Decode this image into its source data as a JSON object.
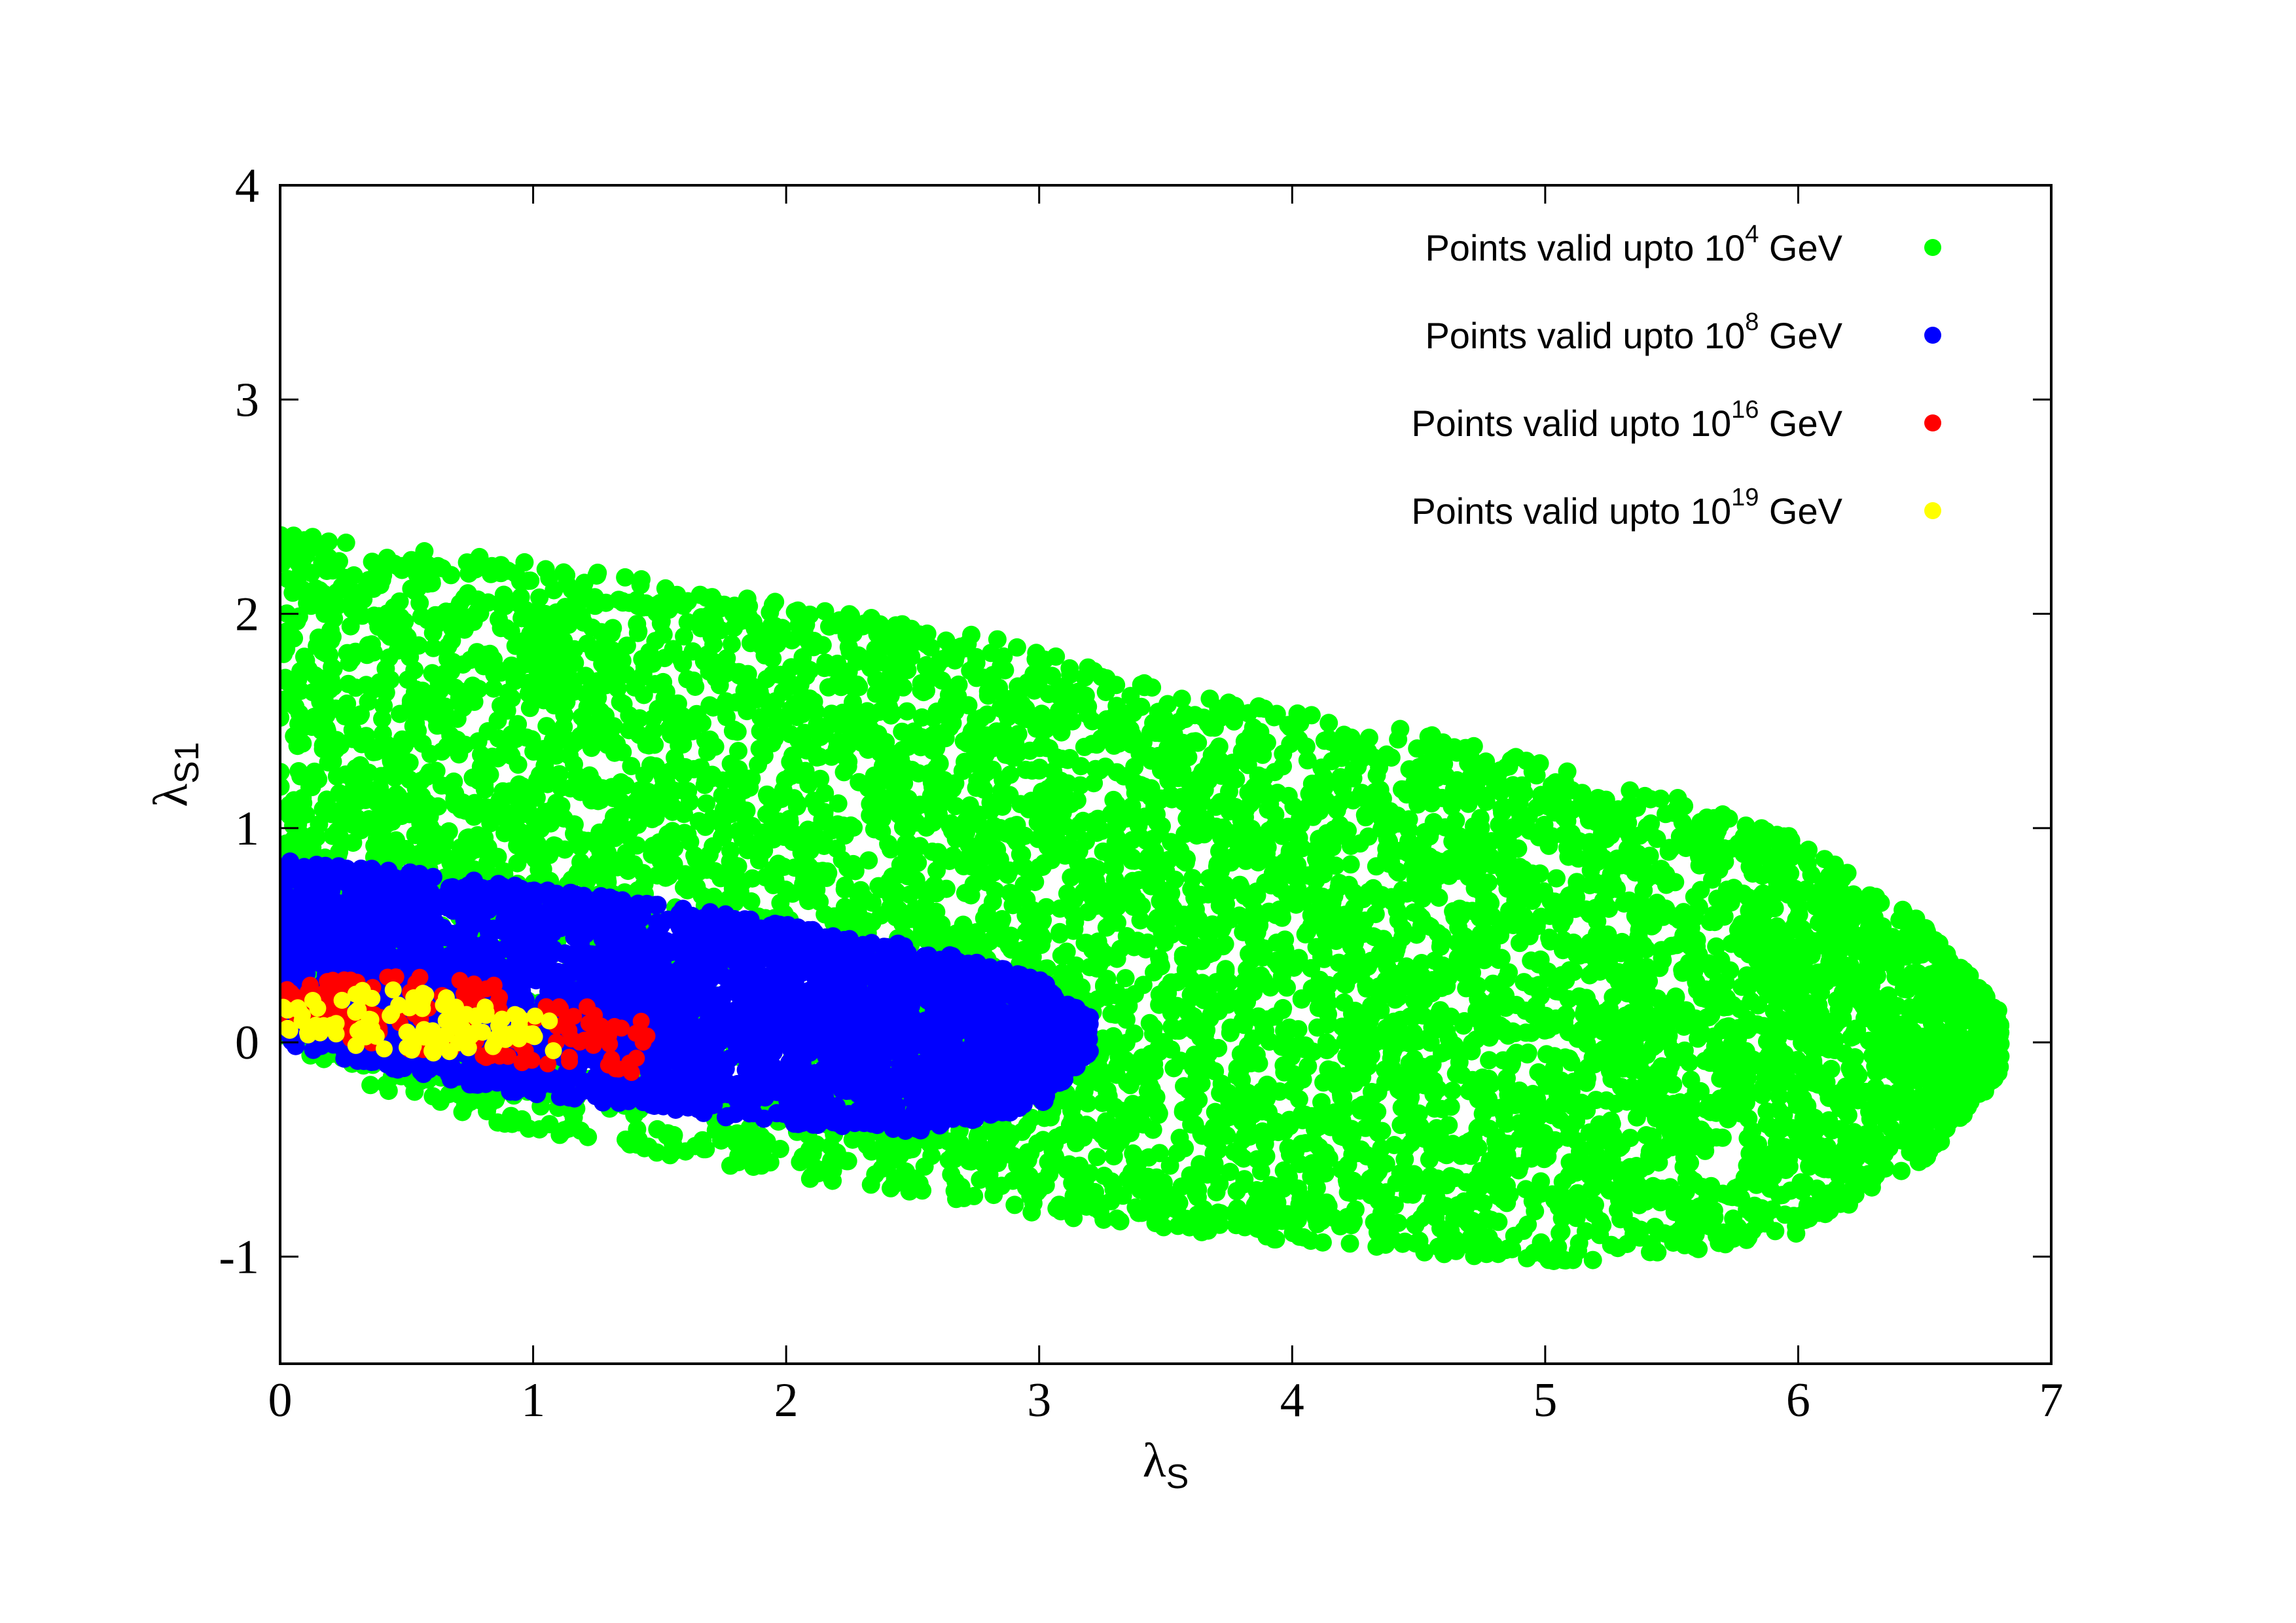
{
  "chart_data": {
    "type": "scatter",
    "xlabel": {
      "symbol": "λ",
      "sub": "S"
    },
    "ylabel": {
      "symbol": "λ",
      "sub": "S1"
    },
    "xlim": [
      0,
      7
    ],
    "ylim": [
      -1.5,
      4
    ],
    "xticks": [
      0,
      1,
      2,
      3,
      4,
      5,
      6,
      7
    ],
    "yticks": [
      -1,
      0,
      1,
      2,
      3,
      4
    ],
    "xtick_labels": [
      "0",
      "1",
      "2",
      "3",
      "4",
      "5",
      "6",
      "7"
    ],
    "ytick_labels": [
      "-1",
      "0",
      "1",
      "2",
      "3",
      "4"
    ],
    "grid": false,
    "legend_position": "top-right",
    "series": [
      {
        "name": "Points valid upto 10^4 GeV",
        "label_prefix": "Points valid upto 10",
        "label_exp": "4",
        "label_suffix": " GeV",
        "color": "#00ff00",
        "region": {
          "x_range": [
            0,
            6.8
          ],
          "upper_boundary": [
            [
              0,
              2.38
            ],
            [
              0.5,
              2.3
            ],
            [
              1,
              2.25
            ],
            [
              1.5,
              2.15
            ],
            [
              2,
              2.05
            ],
            [
              2.5,
              1.95
            ],
            [
              3,
              1.85
            ],
            [
              3.5,
              1.65
            ],
            [
              4,
              1.55
            ],
            [
              4.5,
              1.45
            ],
            [
              5,
              1.3
            ],
            [
              5.5,
              1.15
            ],
            [
              6,
              0.95
            ],
            [
              6.5,
              0.55
            ],
            [
              6.8,
              0.15
            ]
          ],
          "lower_boundary": [
            [
              0,
              0.0
            ],
            [
              0.5,
              -0.3
            ],
            [
              1,
              -0.42
            ],
            [
              1.5,
              -0.52
            ],
            [
              2,
              -0.62
            ],
            [
              2.5,
              -0.72
            ],
            [
              3,
              -0.8
            ],
            [
              3.5,
              -0.88
            ],
            [
              4,
              -0.93
            ],
            [
              4.5,
              -0.98
            ],
            [
              5,
              -1.03
            ],
            [
              5.5,
              -1.0
            ],
            [
              6,
              -0.9
            ],
            [
              6.5,
              -0.55
            ],
            [
              6.8,
              -0.15
            ]
          ]
        }
      },
      {
        "name": "Points valid upto 10^8 GeV",
        "label_prefix": "Points valid upto 10",
        "label_exp": "8",
        "label_suffix": " GeV",
        "color": "#0000ff",
        "region": {
          "x_range": [
            0,
            3.2
          ],
          "upper_boundary": [
            [
              0,
              0.85
            ],
            [
              0.5,
              0.8
            ],
            [
              1,
              0.72
            ],
            [
              1.5,
              0.65
            ],
            [
              2,
              0.55
            ],
            [
              2.5,
              0.45
            ],
            [
              3,
              0.3
            ],
            [
              3.2,
              0.12
            ]
          ],
          "lower_boundary": [
            [
              0,
              0.0
            ],
            [
              0.5,
              -0.15
            ],
            [
              1,
              -0.25
            ],
            [
              1.5,
              -0.32
            ],
            [
              2,
              -0.38
            ],
            [
              2.5,
              -0.42
            ],
            [
              3,
              -0.3
            ],
            [
              3.2,
              -0.05
            ]
          ]
        }
      },
      {
        "name": "Points valid upto 10^16 GeV",
        "label_prefix": "Points valid upto 10",
        "label_exp": "16",
        "label_suffix": " GeV",
        "color": "#ff0000",
        "region": {
          "x_range": [
            0,
            1.5
          ],
          "upper_boundary": [
            [
              0,
              0.33
            ],
            [
              0.5,
              0.32
            ],
            [
              1,
              0.25
            ],
            [
              1.5,
              0.12
            ]
          ],
          "lower_boundary": [
            [
              0,
              0.05
            ],
            [
              0.5,
              -0.08
            ],
            [
              1,
              -0.12
            ],
            [
              1.5,
              -0.15
            ]
          ]
        }
      },
      {
        "name": "Points valid upto 10^19 GeV",
        "label_prefix": "Points valid upto 10",
        "label_exp": "19",
        "label_suffix": " GeV",
        "color": "#ffff00",
        "region": {
          "x_range": [
            0,
            1.1
          ],
          "upper_boundary": [
            [
              0,
              0.25
            ],
            [
              0.5,
              0.25
            ],
            [
              1.1,
              0.1
            ]
          ],
          "lower_boundary": [
            [
              0,
              0.0
            ],
            [
              0.5,
              -0.05
            ],
            [
              1.1,
              -0.05
            ]
          ]
        }
      }
    ]
  }
}
